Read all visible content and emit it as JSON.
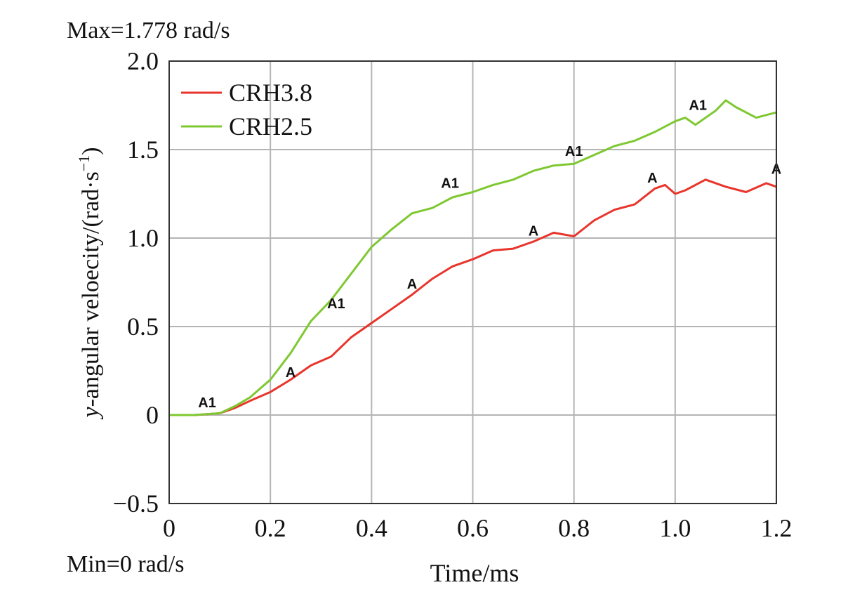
{
  "chart_data": {
    "type": "line",
    "xlabel": "Time/ms",
    "ylabel": {
      "italic": "y",
      "text": "-angular veloecity/(rad·s",
      "sup": "−1",
      "close": ")"
    },
    "xlim": [
      0,
      1.2
    ],
    "ylim": [
      -0.5,
      2.0
    ],
    "xticks": [
      0,
      0.2,
      0.4,
      0.6,
      0.8,
      1.0,
      1.2
    ],
    "xtick_labels": [
      "0",
      "0.2",
      "0.4",
      "0.6",
      "0.8",
      "1.0",
      "1.2"
    ],
    "yticks": [
      -0.5,
      0,
      0.5,
      1.0,
      1.5,
      2.0
    ],
    "ytick_labels": [
      "−0.5",
      "0",
      "0.5",
      "1.0",
      "1.5",
      "2.0"
    ],
    "grid": true,
    "legend_position": "top-left",
    "max_label": "Max=1.778 rad/s",
    "min_label": "Min=0  rad/s",
    "series": [
      {
        "name": "CRH3.8",
        "color": "#e8352c",
        "x": [
          0,
          0.05,
          0.1,
          0.13,
          0.16,
          0.2,
          0.24,
          0.28,
          0.32,
          0.36,
          0.4,
          0.44,
          0.48,
          0.52,
          0.56,
          0.6,
          0.64,
          0.68,
          0.72,
          0.76,
          0.8,
          0.84,
          0.88,
          0.92,
          0.96,
          0.98,
          1.0,
          1.02,
          1.06,
          1.1,
          1.14,
          1.18,
          1.2
        ],
        "y": [
          0,
          0,
          0.01,
          0.04,
          0.08,
          0.13,
          0.2,
          0.28,
          0.33,
          0.44,
          0.52,
          0.6,
          0.68,
          0.77,
          0.84,
          0.88,
          0.93,
          0.94,
          0.98,
          1.03,
          1.01,
          1.1,
          1.16,
          1.19,
          1.28,
          1.3,
          1.25,
          1.27,
          1.33,
          1.29,
          1.26,
          1.31,
          1.29
        ]
      },
      {
        "name": "CRH2.5",
        "color": "#7ec832",
        "x": [
          0,
          0.05,
          0.1,
          0.13,
          0.16,
          0.2,
          0.24,
          0.28,
          0.32,
          0.36,
          0.4,
          0.44,
          0.48,
          0.52,
          0.56,
          0.6,
          0.64,
          0.68,
          0.72,
          0.76,
          0.8,
          0.84,
          0.88,
          0.92,
          0.96,
          1.0,
          1.02,
          1.04,
          1.08,
          1.1,
          1.12,
          1.16,
          1.2
        ],
        "y": [
          0,
          0,
          0.01,
          0.05,
          0.1,
          0.2,
          0.35,
          0.53,
          0.65,
          0.8,
          0.95,
          1.05,
          1.14,
          1.17,
          1.23,
          1.26,
          1.3,
          1.33,
          1.38,
          1.41,
          1.42,
          1.47,
          1.52,
          1.55,
          1.6,
          1.66,
          1.68,
          1.64,
          1.72,
          1.778,
          1.74,
          1.68,
          1.71
        ]
      }
    ],
    "annotations": [
      {
        "text": "A1",
        "x": 0.075,
        "y": 0.02
      },
      {
        "text": "A1",
        "x": 0.33,
        "y": 0.58
      },
      {
        "text": "A1",
        "x": 0.555,
        "y": 1.26
      },
      {
        "text": "A1",
        "x": 0.8,
        "y": 1.44
      },
      {
        "text": "A1",
        "x": 1.045,
        "y": 1.7
      },
      {
        "text": "A",
        "x": 0.24,
        "y": 0.19
      },
      {
        "text": "A",
        "x": 0.48,
        "y": 0.69
      },
      {
        "text": "A",
        "x": 0.72,
        "y": 0.99
      },
      {
        "text": "A",
        "x": 0.955,
        "y": 1.29
      },
      {
        "text": "A",
        "x": 1.2,
        "y": 1.34
      }
    ]
  }
}
